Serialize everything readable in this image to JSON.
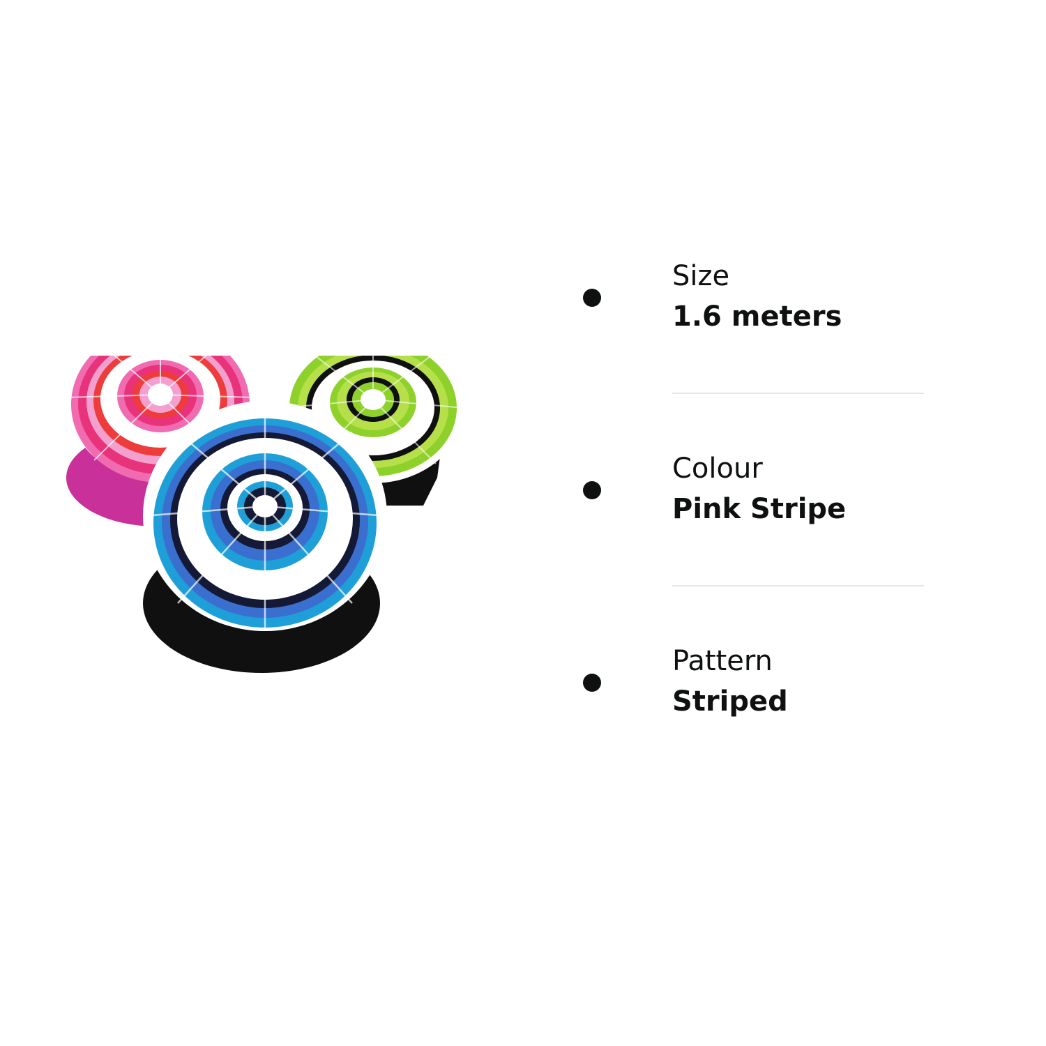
{
  "image": {
    "icon": "striped-beach-umbrellas-image",
    "umbrella_colors": {
      "pink": [
        "#e8327a",
        "#f06bb0",
        "#ee3b3b",
        "#c9309a"
      ],
      "green": [
        "#8fd12b",
        "#b6e04a",
        "#101010"
      ],
      "blue": [
        "#1f9fd8",
        "#3a6fd0",
        "#141a35",
        "#101010"
      ]
    }
  },
  "specs": [
    {
      "label": "Size",
      "value": "1.6 meters"
    },
    {
      "label": "Colour",
      "value": "Pink Stripe"
    },
    {
      "label": "Pattern",
      "value": "Striped"
    }
  ],
  "colors": {
    "text": "#0f1111",
    "divider": "#e3e6e6",
    "background": "#ffffff"
  }
}
